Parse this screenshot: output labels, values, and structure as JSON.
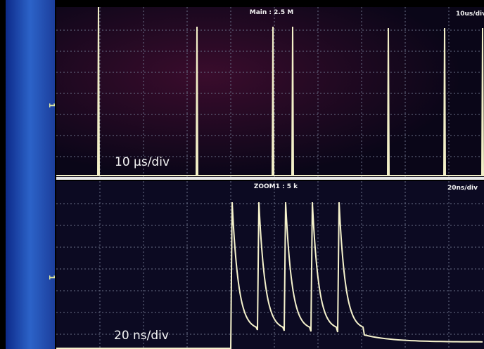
{
  "top_panel": {
    "header": "Main : 2.5 M",
    "timebase": "10us/div",
    "channel": "1",
    "overlay": "10 µs/div"
  },
  "bottom_panel": {
    "header": "ZOOM1 : 5 k",
    "timebase": "20ns/div",
    "channel": "1",
    "overlay": "20 ns/div"
  }
}
